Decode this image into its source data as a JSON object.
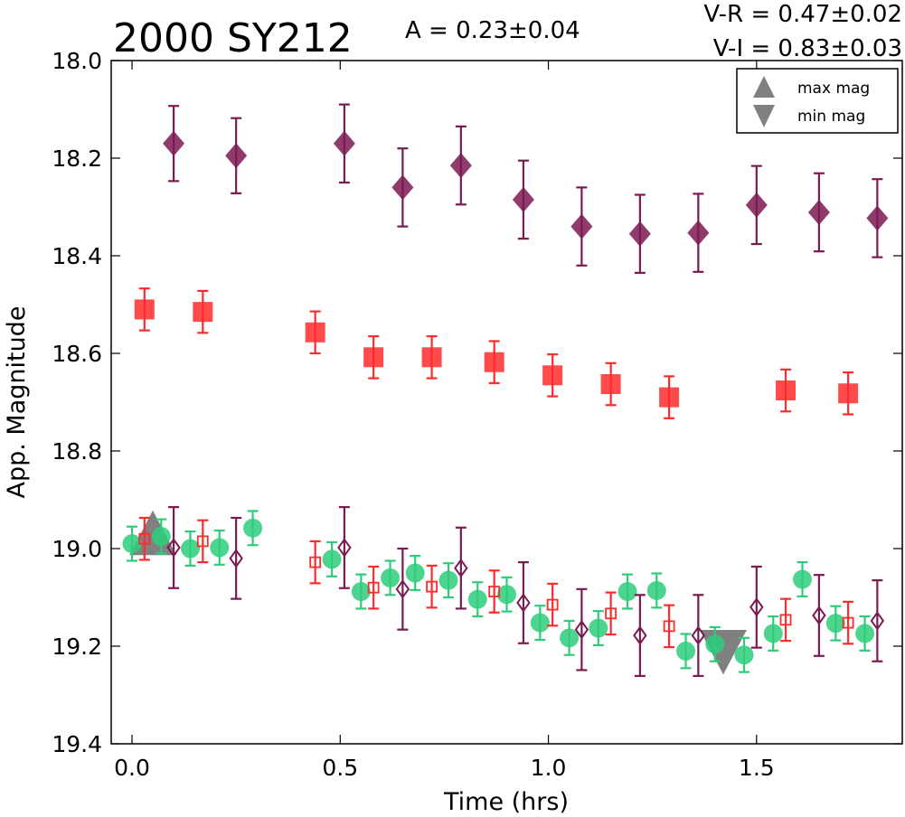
{
  "chart_data": {
    "type": "scatter",
    "title": "2000 SY212",
    "amplitude_label": "A  = 0.23±0.04",
    "color_labels": [
      "V-R = 0.47±0.02",
      "V-I  = 0.83±0.03"
    ],
    "xlabel": "Time (hrs)",
    "ylabel": "App. Magnitude",
    "xlim": [
      -0.05,
      1.85
    ],
    "ylim": [
      19.4,
      18.0
    ],
    "y_inverted": true,
    "xticks": [
      "0.0",
      "0.5",
      "1.0",
      "1.5"
    ],
    "xtick_values": [
      0.0,
      0.5,
      1.0,
      1.5
    ],
    "yticks": [
      "18.0",
      "18.2",
      "18.4",
      "18.6",
      "18.8",
      "19.0",
      "19.2",
      "19.4"
    ],
    "ytick_values": [
      18.0,
      18.2,
      18.4,
      18.6,
      18.8,
      19.0,
      19.2,
      19.4
    ],
    "legend": {
      "position": "top-right",
      "entries": [
        {
          "label": "max mag",
          "marker": "triangle-up",
          "color": "#808080"
        },
        {
          "label": "min mag",
          "marker": "triangle-down",
          "color": "#808080"
        }
      ]
    },
    "extrema": [
      {
        "type": "max",
        "x": 0.05,
        "y": 18.97
      },
      {
        "type": "min",
        "x": 1.42,
        "y": 19.21
      }
    ],
    "series": [
      {
        "marker": "diamond",
        "filled": true,
        "color": "#7b1a52",
        "points": [
          {
            "x": 0.1,
            "y": 18.17,
            "err": 0.077
          },
          {
            "x": 0.25,
            "y": 18.195,
            "err": 0.077
          },
          {
            "x": 0.51,
            "y": 18.17,
            "err": 0.08
          },
          {
            "x": 0.65,
            "y": 18.26,
            "err": 0.08
          },
          {
            "x": 0.79,
            "y": 18.215,
            "err": 0.08
          },
          {
            "x": 0.94,
            "y": 18.285,
            "err": 0.08
          },
          {
            "x": 1.08,
            "y": 18.34,
            "err": 0.08
          },
          {
            "x": 1.22,
            "y": 18.355,
            "err": 0.08
          },
          {
            "x": 1.36,
            "y": 18.353,
            "err": 0.08
          },
          {
            "x": 1.5,
            "y": 18.296,
            "err": 0.08
          },
          {
            "x": 1.65,
            "y": 18.311,
            "err": 0.08
          },
          {
            "x": 1.79,
            "y": 18.323,
            "err": 0.08
          }
        ]
      },
      {
        "marker": "square",
        "filled": true,
        "color": "#ff2b2b",
        "points": [
          {
            "x": 0.03,
            "y": 18.51,
            "err": 0.043
          },
          {
            "x": 0.17,
            "y": 18.515,
            "err": 0.043
          },
          {
            "x": 0.44,
            "y": 18.557,
            "err": 0.043
          },
          {
            "x": 0.58,
            "y": 18.608,
            "err": 0.043
          },
          {
            "x": 0.72,
            "y": 18.608,
            "err": 0.043
          },
          {
            "x": 0.87,
            "y": 18.618,
            "err": 0.043
          },
          {
            "x": 1.01,
            "y": 18.645,
            "err": 0.043
          },
          {
            "x": 1.15,
            "y": 18.663,
            "err": 0.043
          },
          {
            "x": 1.29,
            "y": 18.69,
            "err": 0.043
          },
          {
            "x": 1.57,
            "y": 18.676,
            "err": 0.043
          },
          {
            "x": 1.72,
            "y": 18.682,
            "err": 0.043
          }
        ]
      },
      {
        "marker": "circle",
        "filled": true,
        "color": "#2ecc7a",
        "points": [
          {
            "x": 0.0,
            "y": 18.99,
            "err": 0.035
          },
          {
            "x": 0.07,
            "y": 18.975,
            "err": 0.035
          },
          {
            "x": 0.14,
            "y": 19.0,
            "err": 0.035
          },
          {
            "x": 0.21,
            "y": 18.998,
            "err": 0.035
          },
          {
            "x": 0.29,
            "y": 18.958,
            "err": 0.035
          },
          {
            "x": 0.48,
            "y": 19.022,
            "err": 0.035
          },
          {
            "x": 0.55,
            "y": 19.088,
            "err": 0.035
          },
          {
            "x": 0.62,
            "y": 19.06,
            "err": 0.035
          },
          {
            "x": 0.68,
            "y": 19.05,
            "err": 0.035
          },
          {
            "x": 0.76,
            "y": 19.065,
            "err": 0.035
          },
          {
            "x": 0.83,
            "y": 19.104,
            "err": 0.035
          },
          {
            "x": 0.9,
            "y": 19.094,
            "err": 0.035
          },
          {
            "x": 0.98,
            "y": 19.152,
            "err": 0.035
          },
          {
            "x": 1.05,
            "y": 19.183,
            "err": 0.035
          },
          {
            "x": 1.12,
            "y": 19.163,
            "err": 0.035
          },
          {
            "x": 1.19,
            "y": 19.088,
            "err": 0.035
          },
          {
            "x": 1.26,
            "y": 19.086,
            "err": 0.035
          },
          {
            "x": 1.33,
            "y": 19.21,
            "err": 0.035
          },
          {
            "x": 1.4,
            "y": 19.196,
            "err": 0.035
          },
          {
            "x": 1.47,
            "y": 19.218,
            "err": 0.035
          },
          {
            "x": 1.54,
            "y": 19.174,
            "err": 0.035
          },
          {
            "x": 1.61,
            "y": 19.063,
            "err": 0.035
          },
          {
            "x": 1.69,
            "y": 19.153,
            "err": 0.035
          },
          {
            "x": 1.76,
            "y": 19.174,
            "err": 0.035
          }
        ]
      },
      {
        "marker": "square",
        "filled": false,
        "color": "#ff2b2b",
        "points": [
          {
            "x": 0.03,
            "y": 18.98,
            "err": 0.043
          },
          {
            "x": 0.17,
            "y": 18.985,
            "err": 0.043
          },
          {
            "x": 0.44,
            "y": 19.028,
            "err": 0.043
          },
          {
            "x": 0.58,
            "y": 19.08,
            "err": 0.043
          },
          {
            "x": 0.72,
            "y": 19.078,
            "err": 0.043
          },
          {
            "x": 0.87,
            "y": 19.088,
            "err": 0.043
          },
          {
            "x": 1.01,
            "y": 19.115,
            "err": 0.043
          },
          {
            "x": 1.15,
            "y": 19.133,
            "err": 0.043
          },
          {
            "x": 1.29,
            "y": 19.159,
            "err": 0.043
          },
          {
            "x": 1.57,
            "y": 19.146,
            "err": 0.043
          },
          {
            "x": 1.72,
            "y": 19.152,
            "err": 0.043
          }
        ]
      },
      {
        "marker": "diamond",
        "filled": false,
        "color": "#7b1a52",
        "points": [
          {
            "x": 0.1,
            "y": 18.998,
            "err": 0.083
          },
          {
            "x": 0.25,
            "y": 19.02,
            "err": 0.083
          },
          {
            "x": 0.51,
            "y": 18.998,
            "err": 0.083
          },
          {
            "x": 0.65,
            "y": 19.083,
            "err": 0.083
          },
          {
            "x": 0.79,
            "y": 19.04,
            "err": 0.083
          },
          {
            "x": 0.94,
            "y": 19.111,
            "err": 0.083
          },
          {
            "x": 1.08,
            "y": 19.166,
            "err": 0.083
          },
          {
            "x": 1.22,
            "y": 19.178,
            "err": 0.083
          },
          {
            "x": 1.36,
            "y": 19.178,
            "err": 0.083
          },
          {
            "x": 1.5,
            "y": 19.12,
            "err": 0.083
          },
          {
            "x": 1.65,
            "y": 19.137,
            "err": 0.083
          },
          {
            "x": 1.79,
            "y": 19.148,
            "err": 0.083
          }
        ]
      }
    ]
  }
}
